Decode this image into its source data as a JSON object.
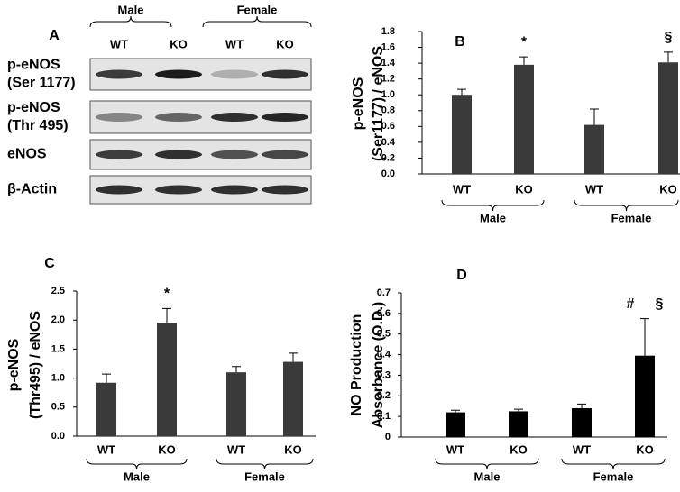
{
  "blot": {
    "panel": "A",
    "groups": [
      "Male",
      "Female"
    ],
    "lanes": [
      "WT",
      "KO",
      "WT",
      "KO"
    ],
    "rows": [
      [
        "p-eNOS",
        "(Ser 1177)"
      ],
      [
        "p-eNOS",
        "(Thr 495)"
      ],
      [
        "eNOS"
      ],
      [
        "β-Actin"
      ]
    ]
  },
  "chart_data": [
    {
      "type": "bar",
      "panel": "B",
      "ylabel": [
        "p-eNOS",
        "(Ser1177) / eNOS"
      ],
      "categories": [
        "WT",
        "KO",
        "WT",
        "KO"
      ],
      "groups": [
        "Male",
        "Female"
      ],
      "values": [
        1.0,
        1.38,
        0.62,
        1.41
      ],
      "errors": [
        0.07,
        0.1,
        0.2,
        0.13
      ],
      "annotations": [
        null,
        [
          "*"
        ],
        null,
        [
          "§"
        ]
      ],
      "color": "#3a3a3a",
      "ylim": [
        0,
        1.8
      ],
      "yticks": [
        {
          "value": 0,
          "label": "0.0"
        },
        0.2,
        0.4,
        0.6,
        0.8,
        {
          "value": 1,
          "label": "1.0"
        },
        1.2,
        1.4,
        1.6,
        1.8
      ]
    },
    {
      "type": "bar",
      "panel": "C",
      "ylabel": [
        "p-eNOS",
        "(Thr495) / eNOS"
      ],
      "categories": [
        "WT",
        "KO",
        "WT",
        "KO"
      ],
      "groups": [
        "Male",
        "Female"
      ],
      "values": [
        0.92,
        1.95,
        1.1,
        1.28
      ],
      "errors": [
        0.15,
        0.25,
        0.1,
        0.15
      ],
      "annotations": [
        null,
        [
          "*"
        ],
        null,
        null
      ],
      "color": "#3a3a3a",
      "ylim": [
        0,
        2.5
      ],
      "yticks": [
        {
          "value": 0,
          "label": "0.0"
        },
        0.5,
        {
          "value": 1,
          "label": "1.0"
        },
        1.5,
        {
          "value": 2,
          "label": "2.0"
        },
        2.5
      ]
    },
    {
      "type": "bar",
      "panel": "D",
      "ylabel": [
        "NO Production",
        "Absorbance (O.D.)"
      ],
      "categories": [
        "WT",
        "KO",
        "WT",
        "KO"
      ],
      "groups": [
        "Male",
        "Female"
      ],
      "values": [
        0.12,
        0.125,
        0.14,
        0.395
      ],
      "errors": [
        0.01,
        0.01,
        0.02,
        0.18
      ],
      "annotations": [
        null,
        null,
        null,
        [
          "#",
          "§"
        ]
      ],
      "color": "#000000",
      "ylim": [
        0,
        0.7
      ],
      "yticks": [
        0,
        0.1,
        0.2,
        0.3,
        0.4,
        0.5,
        0.6,
        0.7
      ]
    }
  ]
}
